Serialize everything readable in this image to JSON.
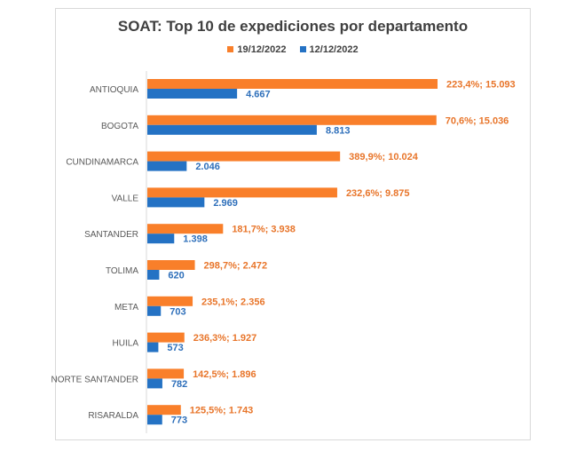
{
  "chart_data": {
    "type": "bar",
    "orientation": "horizontal",
    "title": "SOAT: Top 10 de expediciones por departamento",
    "legend_position": "top",
    "grid": false,
    "xlim": [
      0,
      15500
    ],
    "categories": [
      "ANTIOQUIA",
      "BOGOTA",
      "CUNDINAMARCA",
      "VALLE",
      "SANTANDER",
      "TOLIMA",
      "META",
      "HUILA",
      "NORTE SANTANDER",
      "RISARALDA"
    ],
    "series": [
      {
        "name": "19/12/2022",
        "color": "#f97f2a",
        "values": [
          15093,
          15036,
          10024,
          9875,
          3938,
          2472,
          2356,
          1927,
          1896,
          1743
        ],
        "labels": [
          "223,4%;  15.093",
          "70,6%;  15.036",
          "389,9%;  10.024",
          "232,6%;  9.875",
          "181,7%;  3.938",
          "298,7%;  2.472",
          "235,1%;  2.356",
          "236,3%;  1.927",
          "142,5%;  1.896",
          "125,5%;  1.743"
        ]
      },
      {
        "name": "12/12/2022",
        "color": "#2472c4",
        "values": [
          4667,
          8813,
          2046,
          2969,
          1398,
          620,
          703,
          573,
          782,
          773
        ],
        "labels": [
          "4.667",
          "8.813",
          "2.046",
          "2.969",
          "1.398",
          "620",
          "703",
          "573",
          "782",
          "773"
        ]
      }
    ]
  }
}
